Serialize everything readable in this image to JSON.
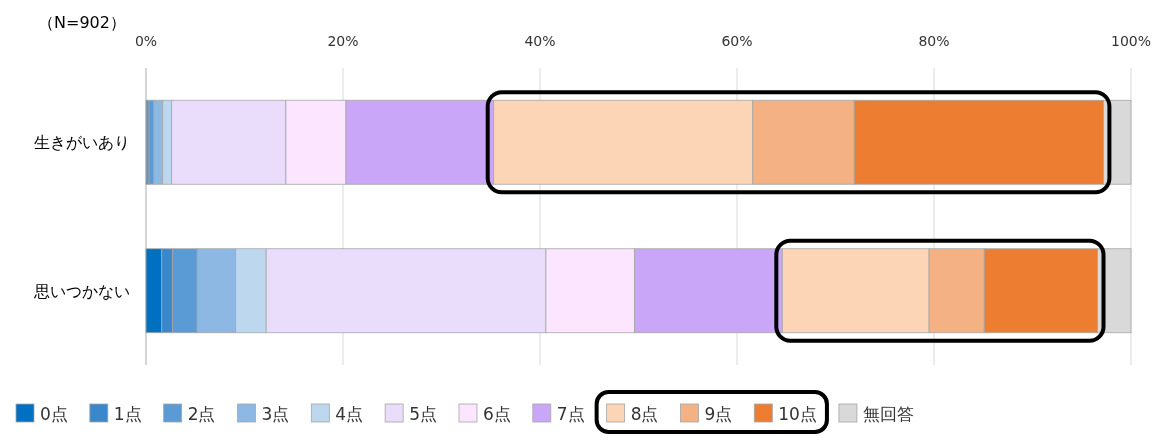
{
  "chart_data": {
    "type": "bar",
    "orientation": "horizontal",
    "stacked": true,
    "categories": [
      "生きがいあり",
      "思いつかない"
    ],
    "series": [
      {
        "name": "0点",
        "color": "#0070c0",
        "values": [
          0.1,
          1.6
        ]
      },
      {
        "name": "1点",
        "color": "#3a87cc",
        "values": [
          0.2,
          1.1
        ]
      },
      {
        "name": "2点",
        "color": "#5b9bd5",
        "values": [
          0.5,
          2.5
        ]
      },
      {
        "name": "3点",
        "color": "#8db8e3",
        "values": [
          0.9,
          3.9
        ]
      },
      {
        "name": "4点",
        "color": "#bdd7ee",
        "values": [
          0.9,
          3.1
        ]
      },
      {
        "name": "5点",
        "color": "#eadcfb",
        "values": [
          11.6,
          28.4
        ]
      },
      {
        "name": "6点",
        "color": "#fbe5ff",
        "values": [
          6.1,
          9.0
        ]
      },
      {
        "name": "7点",
        "color": "#c9a6f7",
        "values": [
          15.0,
          15.0
        ]
      },
      {
        "name": "8点",
        "color": "#fbd5b5",
        "values": [
          26.3,
          14.9
        ]
      },
      {
        "name": "9点",
        "color": "#f4b183",
        "values": [
          10.3,
          5.6
        ]
      },
      {
        "name": "10点",
        "color": "#ed7d31",
        "values": [
          25.3,
          11.5
        ]
      },
      {
        "name": "無回答",
        "color": "#d9d9d9",
        "values": [
          2.8,
          3.4
        ]
      }
    ],
    "xlim": [
      0,
      100
    ],
    "xticks": [
      {
        "value": 0,
        "label": "0%"
      },
      {
        "value": 20,
        "label": "20%"
      },
      {
        "value": 40,
        "label": "40%"
      },
      {
        "value": 60,
        "label": "60%"
      },
      {
        "value": 80,
        "label": "80%"
      },
      {
        "value": 100,
        "label": "100%"
      }
    ],
    "grid": "x",
    "legend": "bottom",
    "annotations": [
      "（N=902）"
    ]
  }
}
